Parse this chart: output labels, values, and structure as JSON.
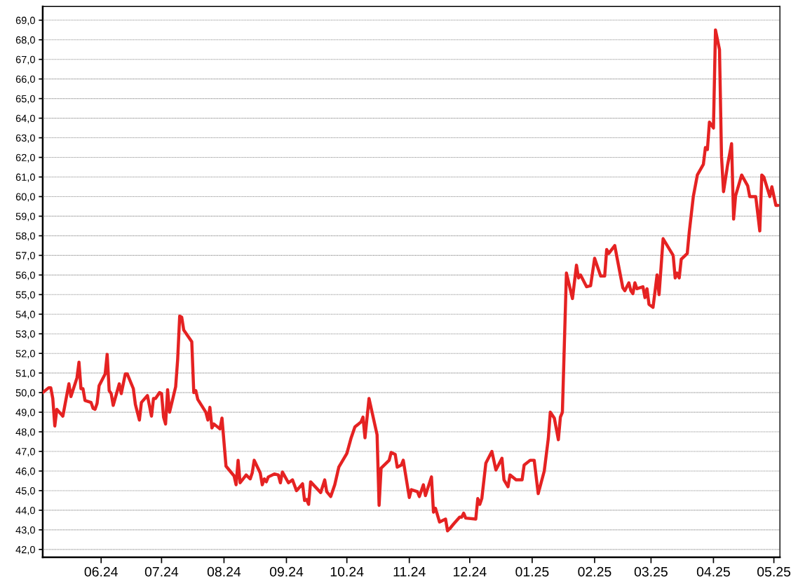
{
  "chart_data": {
    "type": "line",
    "x": [
      "2024-05-03",
      "2024-05-06",
      "2024-05-07",
      "2024-05-08",
      "2024-05-09",
      "2024-05-10",
      "2024-05-13",
      "2024-05-16",
      "2024-05-17",
      "2024-05-20",
      "2024-05-21",
      "2024-05-22",
      "2024-05-23",
      "2024-05-24",
      "2024-05-27",
      "2024-05-28",
      "2024-05-29",
      "2024-05-30",
      "2024-05-31",
      "2024-06-03",
      "2024-06-04",
      "2024-06-05",
      "2024-06-06",
      "2024-06-07",
      "2024-06-10",
      "2024-06-11",
      "2024-06-13",
      "2024-06-14",
      "2024-06-17",
      "2024-06-18",
      "2024-06-20",
      "2024-06-21",
      "2024-06-24",
      "2024-06-26",
      "2024-06-27",
      "2024-06-28",
      "2024-06-30",
      "2024-07-01",
      "2024-07-02",
      "2024-07-03",
      "2024-07-04",
      "2024-07-05",
      "2024-07-08",
      "2024-07-09",
      "2024-07-10",
      "2024-07-11",
      "2024-07-12",
      "2024-07-16",
      "2024-07-17",
      "2024-07-18",
      "2024-07-19",
      "2024-07-23",
      "2024-07-24",
      "2024-07-25",
      "2024-07-26",
      "2024-07-27",
      "2024-07-30",
      "2024-07-31",
      "2024-08-02",
      "2024-08-06",
      "2024-08-07",
      "2024-08-08",
      "2024-08-09",
      "2024-08-12",
      "2024-08-14",
      "2024-08-15",
      "2024-08-16",
      "2024-08-19",
      "2024-08-20",
      "2024-08-21",
      "2024-08-22",
      "2024-08-23",
      "2024-08-26",
      "2024-08-28",
      "2024-08-29",
      "2024-08-30",
      "2024-09-02",
      "2024-09-04",
      "2024-09-06",
      "2024-09-09",
      "2024-09-10",
      "2024-09-11",
      "2024-09-12",
      "2024-09-13",
      "2024-09-18",
      "2024-09-20",
      "2024-09-21",
      "2024-09-23",
      "2024-09-25",
      "2024-09-27",
      "2024-10-01",
      "2024-10-03",
      "2024-10-05",
      "2024-10-08",
      "2024-10-09",
      "2024-10-10",
      "2024-10-12",
      "2024-10-16",
      "2024-10-17",
      "2024-10-18",
      "2024-10-22",
      "2024-10-23",
      "2024-10-25",
      "2024-10-26",
      "2024-10-28",
      "2024-10-29",
      "2024-11-01",
      "2024-11-02",
      "2024-11-05",
      "2024-11-06",
      "2024-11-08",
      "2024-11-09",
      "2024-11-12",
      "2024-11-13",
      "2024-11-14",
      "2024-11-16",
      "2024-11-19",
      "2024-11-20",
      "2024-11-21",
      "2024-11-23",
      "2024-11-26",
      "2024-11-27",
      "2024-11-28",
      "2024-11-29",
      "2024-12-04",
      "2024-12-05",
      "2024-12-06",
      "2024-12-07",
      "2024-12-09",
      "2024-12-12",
      "2024-12-14",
      "2024-12-17",
      "2024-12-18",
      "2024-12-20",
      "2024-12-21",
      "2024-12-24",
      "2024-12-27",
      "2024-12-28",
      "2024-12-31",
      "2025-01-02",
      "2025-01-04",
      "2025-01-07",
      "2025-01-09",
      "2025-01-10",
      "2025-01-12",
      "2025-01-14",
      "2025-01-15",
      "2025-01-16",
      "2025-01-18",
      "2025-01-21",
      "2025-01-23",
      "2025-01-24",
      "2025-01-25",
      "2025-01-28",
      "2025-01-30",
      "2025-02-01",
      "2025-02-04",
      "2025-02-06",
      "2025-02-07",
      "2025-02-08",
      "2025-02-11",
      "2025-02-12",
      "2025-02-15",
      "2025-02-16",
      "2025-02-18",
      "2025-02-19",
      "2025-02-20",
      "2025-02-21",
      "2025-02-22",
      "2025-02-25",
      "2025-02-26",
      "2025-02-27",
      "2025-02-28",
      "2025-03-02",
      "2025-03-04",
      "2025-03-05",
      "2025-03-07",
      "2025-03-12",
      "2025-03-13",
      "2025-03-14",
      "2025-03-15",
      "2025-03-16",
      "2025-03-19",
      "2025-03-20",
      "2025-03-22",
      "2025-03-24",
      "2025-03-27",
      "2025-03-28",
      "2025-03-29",
      "2025-03-30",
      "2025-04-01",
      "2025-04-02",
      "2025-04-04",
      "2025-04-05",
      "2025-04-06",
      "2025-04-08",
      "2025-04-10",
      "2025-04-11",
      "2025-04-12",
      "2025-04-15",
      "2025-04-18",
      "2025-04-19",
      "2025-04-22",
      "2025-04-24",
      "2025-04-25",
      "2025-04-26",
      "2025-04-29",
      "2025-04-30",
      "2025-05-02",
      "2025-05-03"
    ],
    "series": [
      {
        "color": "#e52222",
        "values": [
          50.0,
          50.25,
          50.25,
          49.7,
          48.3,
          49.15,
          48.8,
          50.45,
          49.8,
          50.75,
          51.55,
          50.2,
          50.2,
          49.6,
          49.5,
          49.2,
          49.15,
          49.45,
          50.35,
          50.95,
          51.95,
          50.1,
          49.95,
          49.35,
          50.45,
          49.95,
          50.95,
          50.95,
          50.2,
          49.4,
          48.6,
          49.5,
          49.85,
          48.8,
          49.7,
          49.7,
          50.0,
          49.95,
          48.75,
          48.4,
          50.15,
          49.0,
          50.3,
          51.7,
          53.9,
          53.85,
          53.2,
          52.6,
          50.0,
          50.1,
          49.65,
          49.0,
          48.6,
          49.25,
          48.2,
          48.4,
          48.15,
          48.7,
          46.25,
          45.75,
          45.3,
          46.55,
          45.4,
          45.8,
          45.6,
          45.9,
          46.55,
          45.9,
          45.3,
          45.6,
          45.45,
          45.7,
          45.85,
          45.8,
          45.4,
          45.95,
          45.4,
          45.55,
          45.0,
          45.35,
          44.5,
          44.55,
          44.3,
          45.45,
          44.9,
          45.55,
          44.95,
          44.7,
          45.3,
          46.2,
          46.9,
          47.65,
          48.25,
          48.5,
          48.75,
          47.7,
          49.7,
          47.85,
          44.25,
          46.15,
          46.55,
          46.95,
          46.85,
          46.2,
          46.3,
          46.55,
          44.65,
          45.05,
          44.95,
          44.7,
          45.3,
          44.75,
          45.7,
          43.9,
          44.1,
          43.4,
          43.55,
          42.95,
          43.05,
          43.3,
          43.65,
          43.65,
          43.85,
          43.6,
          43.55,
          44.6,
          44.3,
          44.6,
          46.4,
          47.0,
          46.05,
          46.65,
          45.55,
          45.2,
          45.8,
          45.55,
          45.55,
          46.3,
          46.55,
          46.55,
          44.85,
          46.0,
          47.65,
          49.0,
          48.7,
          47.6,
          48.75,
          49.0,
          56.1,
          54.8,
          56.5,
          55.85,
          56.0,
          55.4,
          55.45,
          56.85,
          55.95,
          55.95,
          57.3,
          57.1,
          57.5,
          56.95,
          55.35,
          55.2,
          55.6,
          55.2,
          55.05,
          55.6,
          55.3,
          55.4,
          54.85,
          55.3,
          54.5,
          54.35,
          56.0,
          55.0,
          57.85,
          57.0,
          55.85,
          56.1,
          55.85,
          56.8,
          57.1,
          58.2,
          60.0,
          61.1,
          61.65,
          62.5,
          62.4,
          63.8,
          63.5,
          68.5,
          67.5,
          62.05,
          60.25,
          61.6,
          62.7,
          58.85,
          60.05,
          61.1,
          60.55,
          60.0,
          60.0,
          58.25,
          61.1,
          61.0,
          60.0,
          60.5,
          59.55,
          59.55
        ]
      }
    ],
    "xlim": [
      "2024-05-03",
      "2025-05-04"
    ],
    "xticks": [
      {
        "value": "2024-06-01",
        "label": "06.24"
      },
      {
        "value": "2024-07-01",
        "label": "07.24"
      },
      {
        "value": "2024-08-01",
        "label": "08.24"
      },
      {
        "value": "2024-09-01",
        "label": "09.24"
      },
      {
        "value": "2024-10-01",
        "label": "10.24"
      },
      {
        "value": "2024-11-01",
        "label": "11.24"
      },
      {
        "value": "2024-12-01",
        "label": "12.24"
      },
      {
        "value": "2025-01-01",
        "label": "01.25"
      },
      {
        "value": "2025-02-01",
        "label": "02.25"
      },
      {
        "value": "2025-03-01",
        "label": "03.25"
      },
      {
        "value": "2025-04-01",
        "label": "04.25"
      },
      {
        "value": "2025-05-01",
        "label": "05.25"
      }
    ],
    "ylim": [
      41.6,
      69.7
    ],
    "yticks": [
      {
        "value": 42,
        "label": "42,0"
      },
      {
        "value": 43,
        "label": "43,0"
      },
      {
        "value": 44,
        "label": "44,0"
      },
      {
        "value": 45,
        "label": "45,0"
      },
      {
        "value": 46,
        "label": "46,0"
      },
      {
        "value": 47,
        "label": "47,0"
      },
      {
        "value": 48,
        "label": "48,0"
      },
      {
        "value": 49,
        "label": "49,0"
      },
      {
        "value": 50,
        "label": "50,0"
      },
      {
        "value": 51,
        "label": "51,0"
      },
      {
        "value": 52,
        "label": "52,0"
      },
      {
        "value": 53,
        "label": "53,0"
      },
      {
        "value": 54,
        "label": "54,0"
      },
      {
        "value": 55,
        "label": "55,0"
      },
      {
        "value": 56,
        "label": "56,0"
      },
      {
        "value": 57,
        "label": "57,0"
      },
      {
        "value": 58,
        "label": "58,0"
      },
      {
        "value": 59,
        "label": "59,0"
      },
      {
        "value": 60,
        "label": "60,0"
      },
      {
        "value": 61,
        "label": "61,0"
      },
      {
        "value": 62,
        "label": "62,0"
      },
      {
        "value": 63,
        "label": "63,0"
      },
      {
        "value": 64,
        "label": "64,0"
      },
      {
        "value": 65,
        "label": "65,0"
      },
      {
        "value": 66,
        "label": "66,0"
      },
      {
        "value": 67,
        "label": "67,0"
      },
      {
        "value": 68,
        "label": "68,0"
      },
      {
        "value": 69,
        "label": "69,0"
      }
    ],
    "grid": "y",
    "marker": "none",
    "line_style": "solid"
  }
}
